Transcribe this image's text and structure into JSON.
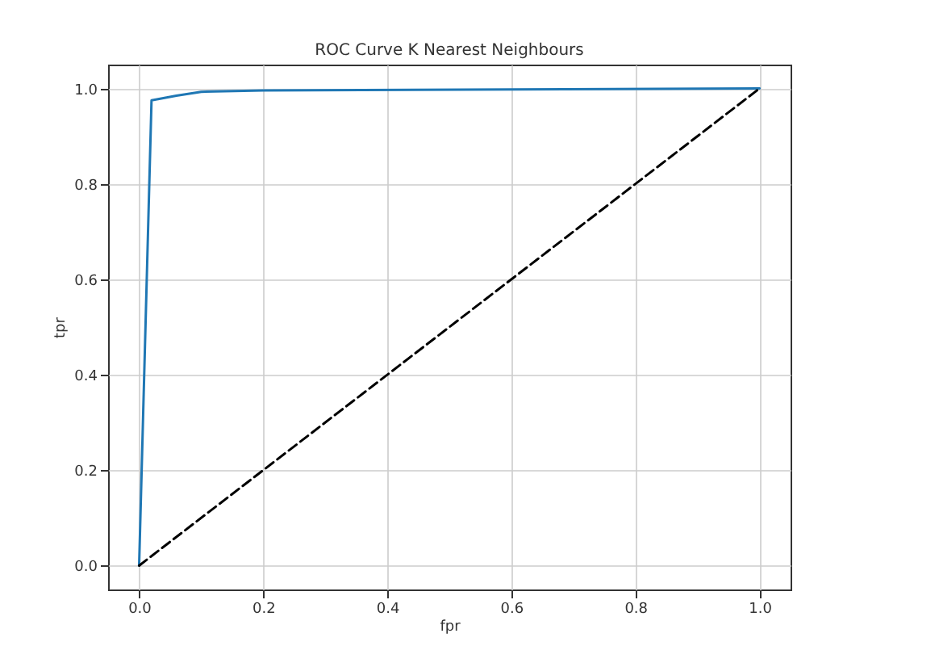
{
  "chart_data": {
    "type": "line",
    "title": "ROC Curve K Nearest Neighbours",
    "xlabel": "fpr",
    "ylabel": "tpr",
    "xlim": [
      -0.05,
      1.05
    ],
    "ylim": [
      -0.05,
      1.05
    ],
    "xticks": [
      {
        "value": 0,
        "label": "0.0"
      },
      {
        "value": 0.2,
        "label": "0.2"
      },
      {
        "value": 0.4,
        "label": "0.4"
      },
      {
        "value": 0.6,
        "label": "0.6"
      },
      {
        "value": 0.8,
        "label": "0.8"
      },
      {
        "value": 1,
        "label": "1.0"
      }
    ],
    "yticks": [
      {
        "value": 0,
        "label": "0.0"
      },
      {
        "value": 0.2,
        "label": "0.2"
      },
      {
        "value": 0.4,
        "label": "0.4"
      },
      {
        "value": 0.6,
        "label": "0.6"
      },
      {
        "value": 0.8,
        "label": "0.8"
      },
      {
        "value": 1,
        "label": "1.0"
      }
    ],
    "grid": true,
    "marker": "none",
    "series": [
      {
        "color": "#1f77b4",
        "line_style": "solid",
        "x": [
          0,
          0.02,
          0.06,
          0.1,
          0.2,
          1
        ],
        "values": [
          0,
          0.975,
          0.985,
          0.993,
          0.996,
          1
        ]
      },
      {
        "color": "#000000",
        "line_style": "dashed",
        "x": [
          0,
          1
        ],
        "values": [
          0,
          1
        ]
      }
    ]
  }
}
